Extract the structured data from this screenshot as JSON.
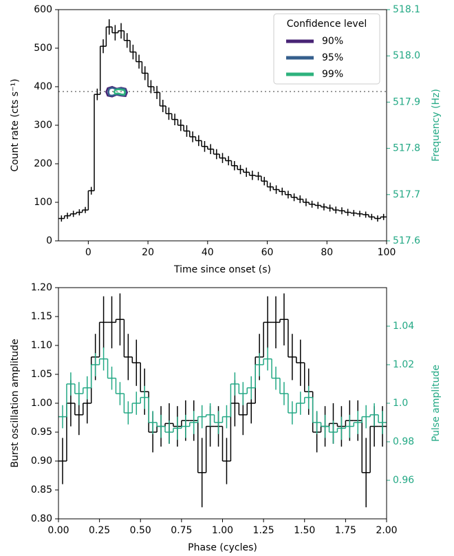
{
  "chart_data": [
    {
      "type": "histogram",
      "xlabel": "Time since onset (s)",
      "ylabel": "Count rate (cts s⁻¹)",
      "y2label": "Frequency (Hz)",
      "bins": [
        -10,
        -8,
        -6,
        -4,
        -2,
        0,
        2,
        4,
        6,
        8,
        10,
        12,
        14,
        16,
        18,
        20,
        22,
        24,
        26,
        28,
        30,
        32,
        34,
        36,
        38,
        40,
        42,
        44,
        46,
        48,
        50,
        52,
        54,
        56,
        58,
        60,
        62,
        64,
        66,
        68,
        70,
        72,
        74,
        76,
        78,
        80,
        82,
        84,
        86,
        88,
        90,
        92,
        94,
        96,
        98,
        100
      ],
      "values": [
        58,
        65,
        70,
        74,
        80,
        130,
        380,
        505,
        555,
        540,
        545,
        520,
        490,
        465,
        435,
        400,
        385,
        350,
        330,
        315,
        300,
        285,
        270,
        260,
        245,
        238,
        225,
        215,
        208,
        195,
        185,
        178,
        170,
        168,
        155,
        140,
        133,
        128,
        120,
        113,
        108,
        100,
        95,
        92,
        88,
        85,
        80,
        78,
        74,
        72,
        70,
        68,
        62,
        58,
        62
      ],
      "errors": [
        8,
        8,
        8,
        8,
        8,
        10,
        15,
        18,
        20,
        20,
        20,
        19,
        19,
        18,
        18,
        17,
        17,
        16,
        16,
        15,
        15,
        15,
        14,
        14,
        14,
        13,
        13,
        13,
        12,
        12,
        12,
        12,
        12,
        11,
        11,
        11,
        11,
        10,
        10,
        10,
        10,
        10,
        9,
        9,
        9,
        9,
        9,
        9,
        9,
        8,
        8,
        8,
        8,
        8,
        8
      ],
      "color": "#000000",
      "xlim": [
        -10,
        100
      ],
      "xticks": [
        0,
        20,
        40,
        60,
        80,
        100
      ],
      "ylim": [
        0,
        600
      ],
      "yticks": [
        0,
        100,
        200,
        300,
        400,
        500,
        600
      ],
      "y2lim": [
        517.6,
        518.1
      ],
      "y2ticks": [
        517.6,
        517.7,
        517.8,
        517.9,
        {
          "value": 518,
          "label": "518.0"
        },
        518.1
      ],
      "y2_color": "#22a884",
      "reference_line": {
        "value": 517.923,
        "axis": "y2",
        "color": "#999999",
        "style": "dotted"
      },
      "legend_title": "Confidence level",
      "legend": "upper right",
      "confidence_regions": [
        {
          "name": "90%",
          "color": "#482475",
          "x": [
            6.5,
            8,
            9.5,
            11,
            12.5,
            13,
            12.5,
            11,
            9.5,
            8,
            6.5,
            6
          ],
          "y": [
            517.93,
            517.933,
            517.929,
            517.931,
            517.929,
            517.921,
            517.913,
            517.914,
            517.916,
            517.912,
            517.914,
            517.922
          ]
        },
        {
          "name": "95%",
          "color": "#355f8d",
          "x": [
            7,
            8,
            9.5,
            11,
            12.3,
            12.6,
            12.3,
            11,
            9.5,
            8,
            7,
            6.7
          ],
          "y": [
            517.929,
            517.931,
            517.928,
            517.93,
            517.928,
            517.921,
            517.915,
            517.915,
            517.917,
            517.914,
            517.915,
            517.922
          ]
        },
        {
          "name": "99%",
          "color": "#2db27d",
          "x": [
            9,
            10,
            11,
            12,
            12.3,
            12,
            11,
            10,
            9,
            8.7
          ],
          "y": [
            517.926,
            517.928,
            517.927,
            517.926,
            517.921,
            517.916,
            517.917,
            517.919,
            517.918,
            517.922
          ]
        }
      ]
    },
    {
      "type": "histogram",
      "xlabel": "Phase (cycles)",
      "ylabel": "Burst oscillation amplitude",
      "y2label": "Pulse amplitude",
      "bins": [
        0,
        0.05,
        0.1,
        0.15,
        0.2,
        0.25,
        0.3,
        0.35,
        0.4,
        0.45,
        0.5,
        0.55,
        0.6,
        0.65,
        0.7,
        0.75,
        0.8,
        0.85,
        0.9,
        0.95,
        1,
        1.05,
        1.1,
        1.15,
        1.2,
        1.25,
        1.3,
        1.35,
        1.4,
        1.45,
        1.5,
        1.55,
        1.6,
        1.65,
        1.7,
        1.75,
        1.8,
        1.85,
        1.9,
        1.95,
        2
      ],
      "series": [
        {
          "color": "#000000",
          "values": [
            0.9,
            1.0,
            0.98,
            1.0,
            1.08,
            1.14,
            1.14,
            1.145,
            1.08,
            1.07,
            1.02,
            0.95,
            0.96,
            0.965,
            0.96,
            0.97,
            0.97,
            0.88,
            0.96,
            0.96,
            0.9,
            1.0,
            0.98,
            1.0,
            1.08,
            1.14,
            1.14,
            1.145,
            1.08,
            1.07,
            1.02,
            0.95,
            0.96,
            0.965,
            0.96,
            0.97,
            0.97,
            0.88,
            0.96,
            0.96
          ],
          "errors": [
            0.04,
            0.04,
            0.035,
            0.035,
            0.04,
            0.045,
            0.045,
            0.045,
            0.04,
            0.04,
            0.04,
            0.035,
            0.035,
            0.035,
            0.035,
            0.035,
            0.035,
            0.06,
            0.035,
            0.035,
            0.04,
            0.04,
            0.035,
            0.035,
            0.04,
            0.045,
            0.045,
            0.045,
            0.04,
            0.04,
            0.04,
            0.035,
            0.035,
            0.035,
            0.035,
            0.035,
            0.035,
            0.06,
            0.035,
            0.035
          ]
        },
        {
          "color": "#22a884",
          "axis": "y2",
          "values": [
            0.993,
            1.01,
            1.005,
            1.008,
            1.02,
            1.023,
            1.013,
            1.005,
            0.995,
            1.0,
            1.003,
            0.99,
            0.988,
            0.985,
            0.987,
            0.988,
            0.99,
            0.993,
            0.994,
            0.99,
            0.993,
            1.01,
            1.005,
            1.008,
            1.02,
            1.023,
            1.013,
            1.005,
            0.995,
            1.0,
            1.003,
            0.99,
            0.988,
            0.985,
            0.987,
            0.988,
            0.99,
            0.993,
            0.994,
            0.99
          ],
          "errors": [
            0.006,
            0.006,
            0.006,
            0.006,
            0.006,
            0.006,
            0.006,
            0.006,
            0.006,
            0.006,
            0.006,
            0.006,
            0.006,
            0.006,
            0.006,
            0.006,
            0.006,
            0.006,
            0.006,
            0.006,
            0.006,
            0.006,
            0.006,
            0.006,
            0.006,
            0.006,
            0.006,
            0.006,
            0.006,
            0.006,
            0.006,
            0.006,
            0.006,
            0.006,
            0.006,
            0.006,
            0.006,
            0.006,
            0.006,
            0.006
          ]
        }
      ],
      "xlim": [
        0,
        2
      ],
      "xticks": [
        {
          "value": 0,
          "label": "0.00"
        },
        {
          "value": 0.25,
          "label": "0.25"
        },
        {
          "value": 0.5,
          "label": "0.50"
        },
        {
          "value": 0.75,
          "label": "0.75"
        },
        {
          "value": 1,
          "label": "1.00"
        },
        {
          "value": 1.25,
          "label": "1.25"
        },
        {
          "value": 1.5,
          "label": "1.50"
        },
        {
          "value": 1.75,
          "label": "1.75"
        },
        {
          "value": 2,
          "label": "2.00"
        }
      ],
      "ylim": [
        0.8,
        1.2
      ],
      "yticks": [
        {
          "value": 0.8,
          "label": "0.80"
        },
        0.85,
        {
          "value": 0.9,
          "label": "0.90"
        },
        0.95,
        {
          "value": 1,
          "label": "1.00"
        },
        1.05,
        {
          "value": 1.1,
          "label": "1.10"
        },
        1.15,
        {
          "value": 1.2,
          "label": "1.20"
        }
      ],
      "y2lim": [
        0.94,
        1.06
      ],
      "y2ticks": [
        0.96,
        0.98,
        {
          "value": 1,
          "label": "1.0"
        },
        1.02,
        1.04
      ],
      "y2_color": "#22a884"
    }
  ]
}
